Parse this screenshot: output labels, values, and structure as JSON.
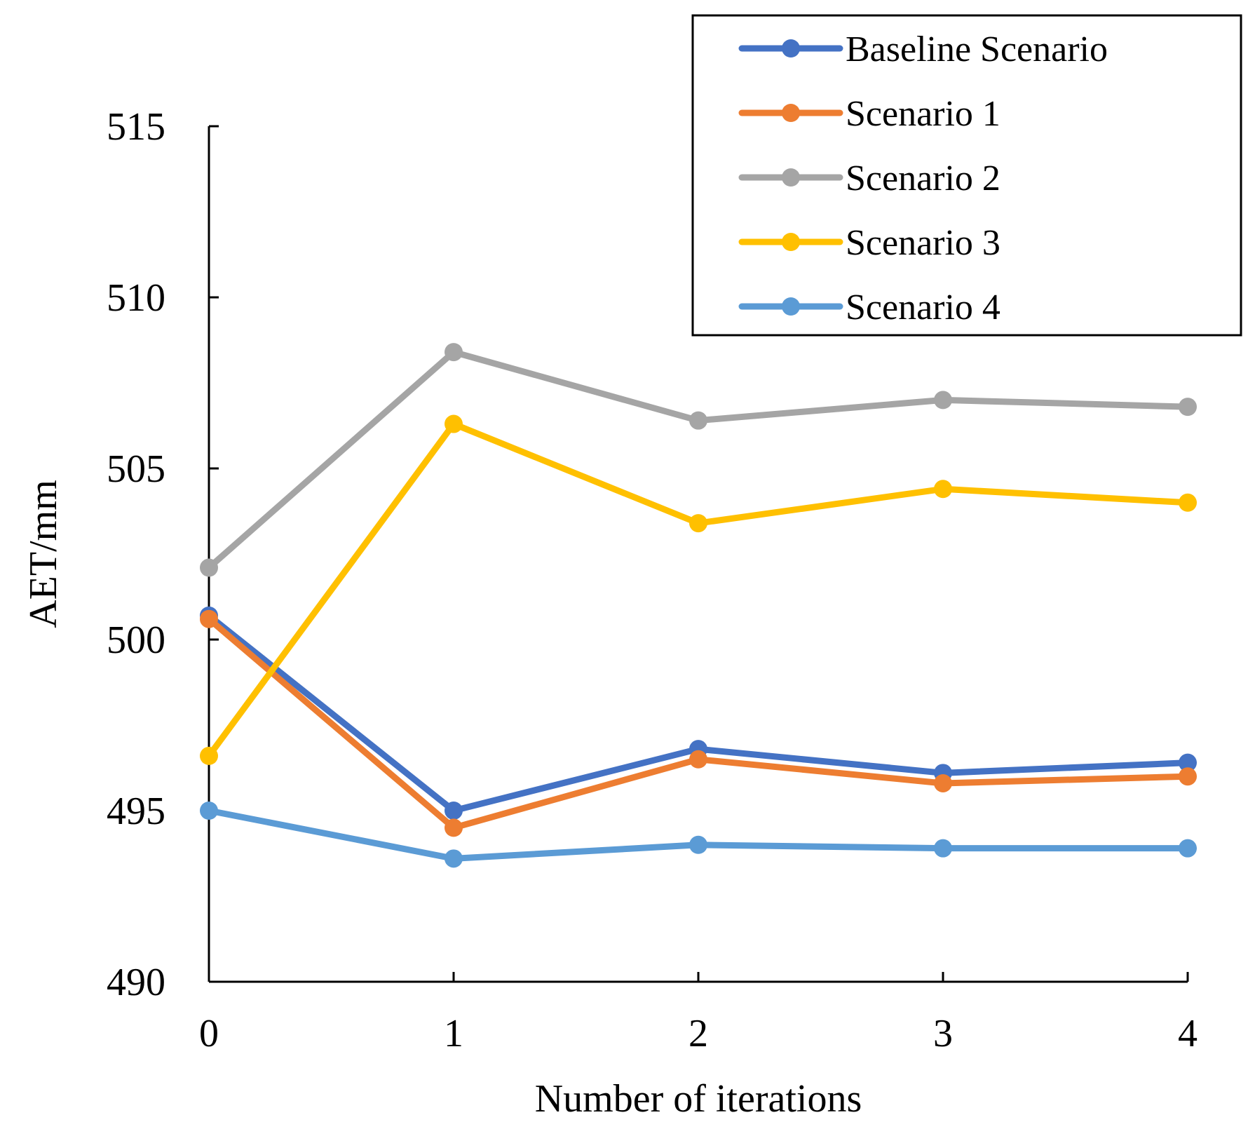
{
  "chart_data": {
    "type": "line",
    "title": "",
    "xlabel": "Number of iterations",
    "ylabel": "AET/mm",
    "x": [
      0,
      1,
      2,
      3,
      4
    ],
    "xticks": [
      "0",
      "1",
      "2",
      "3",
      "4"
    ],
    "yticks": [
      "490",
      "495",
      "500",
      "505",
      "510",
      "515"
    ],
    "ylim": [
      490,
      515
    ],
    "xlim": [
      0,
      4
    ],
    "grid": false,
    "legend_position": "top-right",
    "series": [
      {
        "name": "Baseline Scenario",
        "color": "#4472C4",
        "values": [
          500.7,
          495.0,
          496.8,
          496.1,
          496.4
        ]
      },
      {
        "name": "Scenario 1",
        "color": "#ED7D31",
        "values": [
          500.6,
          494.5,
          496.5,
          495.8,
          496.0
        ]
      },
      {
        "name": "Scenario 2",
        "color": "#A5A5A5",
        "values": [
          502.1,
          508.4,
          506.4,
          507.0,
          506.8
        ]
      },
      {
        "name": "Scenario 3",
        "color": "#FFC000",
        "values": [
          496.6,
          506.3,
          503.4,
          504.4,
          504.0
        ]
      },
      {
        "name": "Scenario 4",
        "color": "#5B9BD5",
        "values": [
          495.0,
          493.6,
          494.0,
          493.9,
          493.9
        ]
      }
    ]
  }
}
